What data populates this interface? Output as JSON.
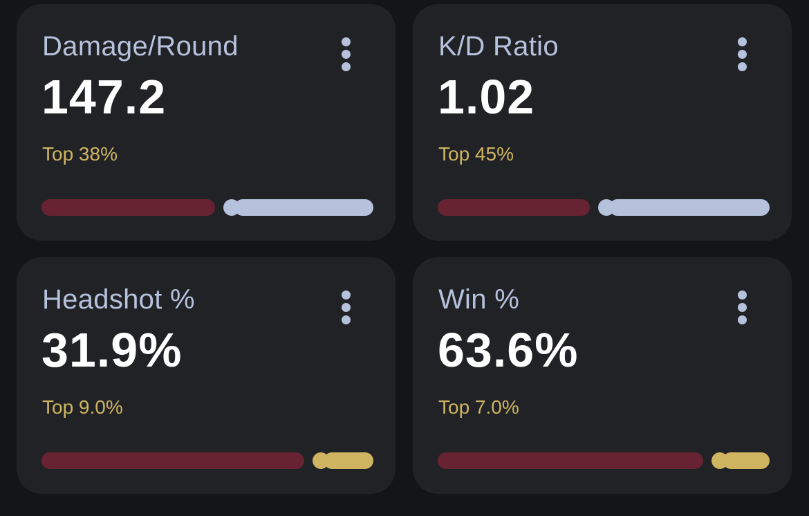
{
  "cards": [
    {
      "label": "Damage/Round",
      "value": "147.2",
      "rank": "Top 38%",
      "progress_fraction": 0.58,
      "bar_color": "silver"
    },
    {
      "label": "K/D Ratio",
      "value": "1.02",
      "rank": "Top 45%",
      "progress_fraction": 0.51,
      "bar_color": "silver"
    },
    {
      "label": "Headshot %",
      "value": "31.9%",
      "rank": "Top 9.0%",
      "progress_fraction": 0.88,
      "bar_color": "gold"
    },
    {
      "label": "Win %",
      "value": "63.6%",
      "rank": "Top 7.0%",
      "progress_fraction": 0.89,
      "bar_color": "gold"
    }
  ],
  "colors": {
    "background": "#141518",
    "card": "#212226",
    "label": "#b6c1dc",
    "value": "#ffffff",
    "rank": "#cfb461",
    "bar_fill": "#682332",
    "bar_silver": "#b6c2dc",
    "bar_gold": "#cfb461"
  },
  "icons": {
    "menu": "more-vertical-icon"
  }
}
